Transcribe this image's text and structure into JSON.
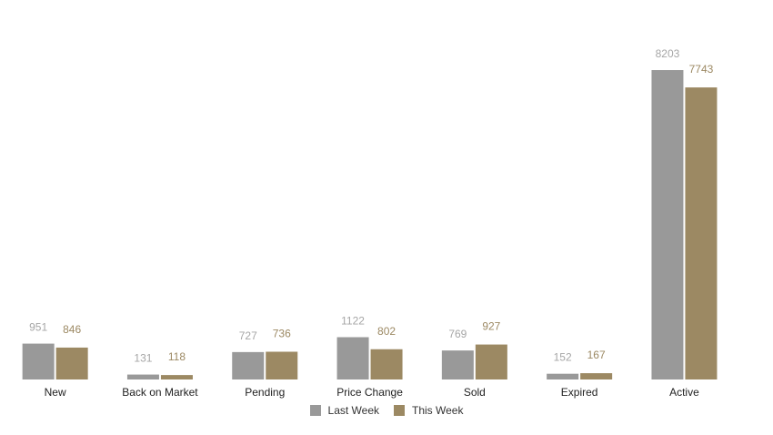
{
  "chart_data": {
    "type": "bar",
    "categories": [
      "New",
      "Back on Market",
      "Pending",
      "Price Change",
      "Sold",
      "Expired",
      "Active"
    ],
    "series": [
      {
        "name": "Last Week",
        "values": [
          951,
          131,
          727,
          1122,
          769,
          152,
          8203
        ],
        "color": "#999999"
      },
      {
        "name": "This Week",
        "values": [
          846,
          118,
          736,
          802,
          927,
          167,
          7743
        ],
        "color": "#9c8963"
      }
    ],
    "title": "",
    "xlabel": "",
    "ylabel": "",
    "ylim": [
      0,
      8203
    ],
    "grid": false,
    "legend": "bottom-center",
    "data_label_colors": {
      "Last Week": "#a6a6a6",
      "This Week": "#9c8963"
    }
  }
}
